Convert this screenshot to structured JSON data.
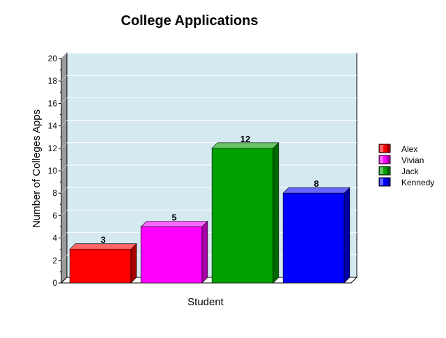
{
  "chart_data": {
    "type": "bar",
    "title": "College Applications",
    "xlabel": "Student",
    "ylabel": "Number of Colleges Apps",
    "categories": [
      "Alex",
      "Vivian",
      "Jack",
      "Kennedy"
    ],
    "values": [
      3,
      5,
      12,
      8
    ],
    "colors": [
      "#ff0000",
      "#ff00ff",
      "#00a000",
      "#0000ff"
    ],
    "ylim": [
      0,
      20
    ],
    "yticks": [
      0,
      2,
      4,
      6,
      8,
      10,
      12,
      14,
      16,
      18,
      20
    ],
    "grid": true,
    "legend_position": "right",
    "plot_background": "#d4e9f0",
    "style": "3d"
  }
}
